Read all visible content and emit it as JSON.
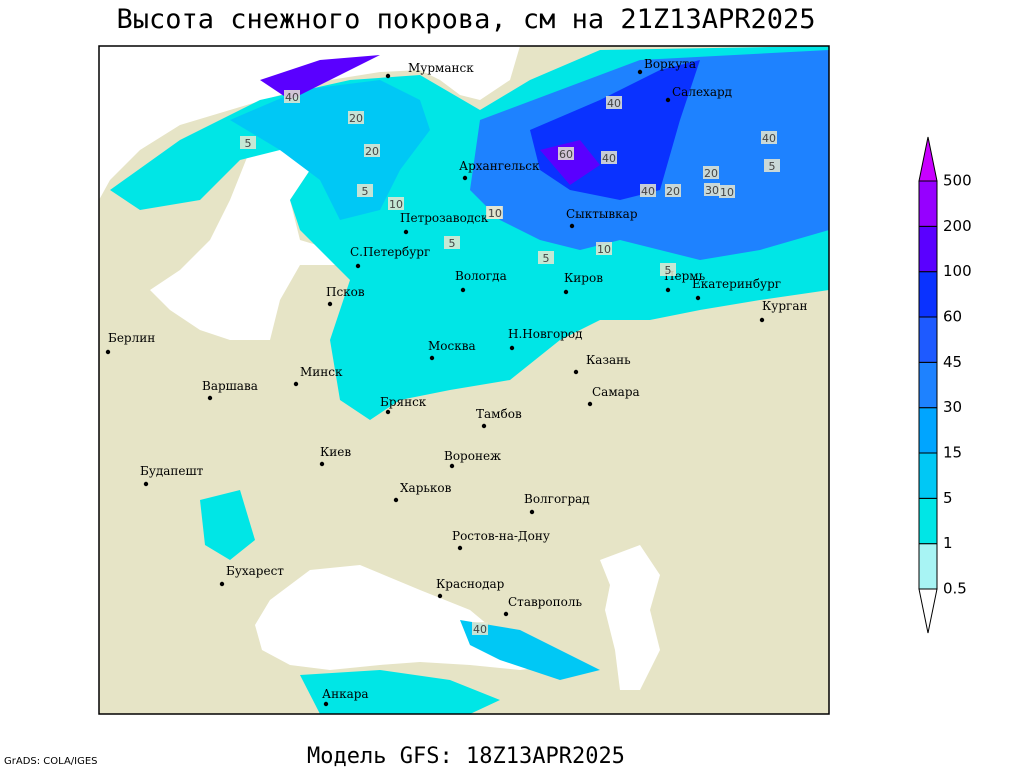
{
  "title": "Высота снежного покрова, см на 21Z13APR2025",
  "subtitle": "Модель GFS: 18Z13APR2025",
  "credit": "GrADS: COLA/IGES",
  "cities": [
    "Мурманск",
    "Воркута",
    "Салехард",
    "Архангельск",
    "Сыктывкар",
    "Петрозаводск",
    "С.Петербург",
    "Вологда",
    "Киров",
    "Пермь",
    "Екатеринбург",
    "Курган",
    "Псков",
    "Берлин",
    "Н.Новгород",
    "Москва",
    "Казань",
    "Минск",
    "Варшава",
    "Самара",
    "Брянск",
    "Тамбов",
    "Киев",
    "Воронеж",
    "Будапешт",
    "Харьков",
    "Волгоград",
    "Ростов-на-Дону",
    "Бухарест",
    "Краснодар",
    "Ставрополь",
    "Анкара"
  ],
  "contour_labels": [
    40,
    20,
    5,
    20,
    10,
    40,
    60,
    40,
    40,
    10,
    10,
    5,
    40,
    20,
    30,
    10,
    20,
    5,
    5,
    10,
    5,
    5,
    40
  ],
  "colorbar": {
    "levels": [
      0.5,
      1,
      5,
      15,
      30,
      45,
      60,
      100,
      200,
      500
    ],
    "colors": [
      "#ffffff",
      "#a8f4f4",
      "#00e6e6",
      "#00c8f5",
      "#00a5ff",
      "#1e82ff",
      "#1e5aff",
      "#0a32ff",
      "#5a00ff",
      "#9600ff",
      "#c800ff"
    ]
  }
}
